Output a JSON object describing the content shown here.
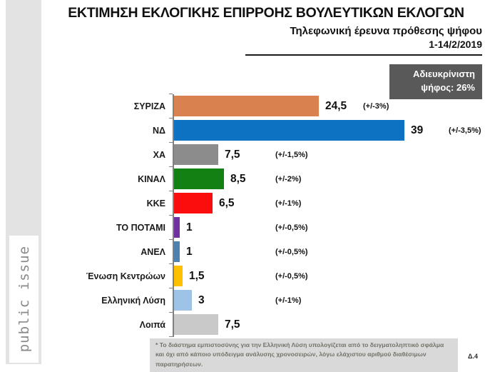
{
  "header": {
    "title": "ΕΚΤΙΜΗΣΗ ΕΚΛΟΓΙΚΗΣ ΕΠΙΡΡΟΗΣ ΒΟΥΛΕΥΤΙΚΩΝ ΕΚΛΟΓΩΝ",
    "subtitle": "Τηλεφωνική έρευνα πρόθεσης ψήφου",
    "date_range": "1-14/2/2019"
  },
  "badge": {
    "line1": "Αδιευκρίνιστη",
    "line2": "ψήφος: 26%",
    "bg_color": "#595959",
    "text_color": "#ffffff"
  },
  "chart_data": {
    "type": "bar",
    "orientation": "horizontal",
    "title": "ΕΚΤΙΜΗΣΗ ΕΚΛΟΓΙΚΗΣ ΕΠΙΡΡΟΗΣ ΒΟΥΛΕΥΤΙΚΩΝ ΕΚΛΟΓΩΝ",
    "xlabel": "",
    "ylabel": "",
    "xlim": [
      0,
      42
    ],
    "grid": false,
    "legend": false,
    "categories": [
      "ΣΥΡΙΖΑ",
      "ΝΔ",
      "ΧΑ",
      "ΚΙΝΑΛ",
      "ΚΚΕ",
      "ΤΟ ΠΟΤΑΜΙ",
      "ΑΝΕΛ",
      "Ένωση Κεντρώων",
      "Ελληνική Λύση",
      "Λοιπά"
    ],
    "values": [
      24.5,
      39,
      7.5,
      8.5,
      6.5,
      1,
      1,
      1.5,
      3,
      7.5
    ],
    "value_labels": [
      "24,5",
      "39",
      "7,5",
      "8,5",
      "6,5",
      "1",
      "1",
      "1,5",
      "3",
      "7,5"
    ],
    "margins_of_error": [
      "(+/-3%)",
      "(+/-3,5%)",
      "(+/-1,5%)",
      "(+/-2%)",
      "(+/-1%)",
      "(+/-0,5%)",
      "(+/-0,5%)",
      "(+/-0,5%)",
      "(+/-1%)",
      ""
    ],
    "bar_colors": [
      "#d9824f",
      "#0e72c2",
      "#8c8c8c",
      "#128012",
      "#fb0d0d",
      "#7030a0",
      "#4f81b0",
      "#ffc000",
      "#9dc3e6",
      "#c9c9c9"
    ]
  },
  "footnote": {
    "text": "* Το διάστημα εμπιστοσύνης για την Ελληνική Λύση υπολογίζεται από το δειγματοληπτικό σφάλμα και όχι από κάποιο υπόδειγμα ανάλυσης χρονοσειρών, λόγω ελάχιστου αριθμού διαθέσιμων παρατηρήσεων.",
    "ref": "Δ.4"
  },
  "watermark": {
    "text": "public issue"
  }
}
